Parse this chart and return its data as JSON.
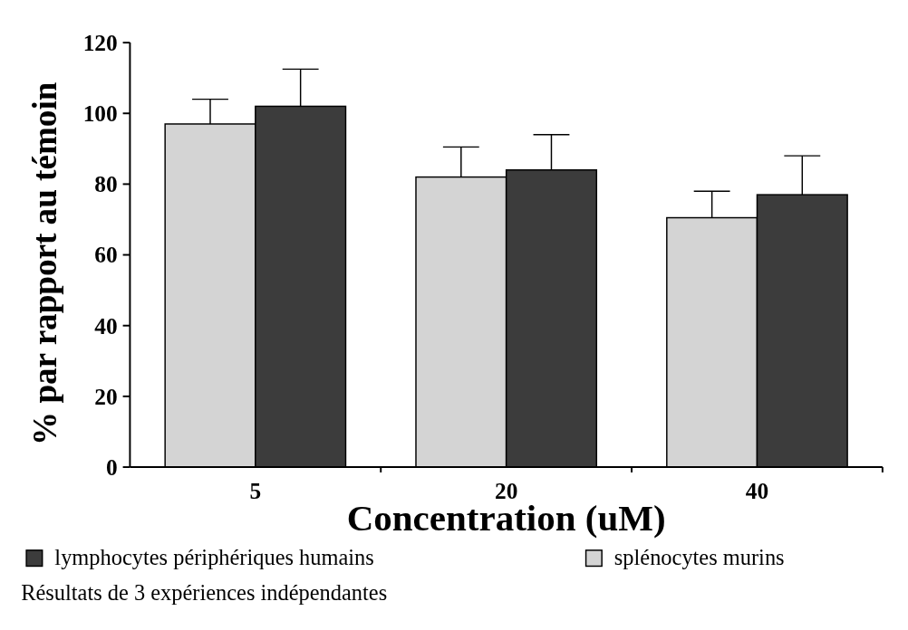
{
  "chart_data": {
    "type": "bar",
    "xlabel": "Concentration (uM)",
    "ylabel": "% par rapport au témoin",
    "categories": [
      "5",
      "20",
      "40"
    ],
    "series": [
      {
        "name": "splénocytes murins",
        "color": "#d4d4d4",
        "values": [
          97,
          82,
          70.5
        ],
        "errors": [
          [
            97,
            104
          ],
          [
            82,
            90.5
          ],
          [
            70.5,
            78
          ]
        ]
      },
      {
        "name": "lymphocytes périphériques humains",
        "color": "#3c3c3c",
        "values": [
          102,
          84,
          77
        ],
        "errors": [
          [
            102,
            112.5
          ],
          [
            84,
            94
          ],
          [
            77,
            88
          ]
        ]
      }
    ],
    "ylim": [
      0,
      120
    ],
    "yticks": [
      0,
      20,
      40,
      60,
      80,
      100,
      120
    ],
    "legend": "bottom",
    "annotations": [
      "Résultats de 3 expériences indépendantes"
    ]
  }
}
